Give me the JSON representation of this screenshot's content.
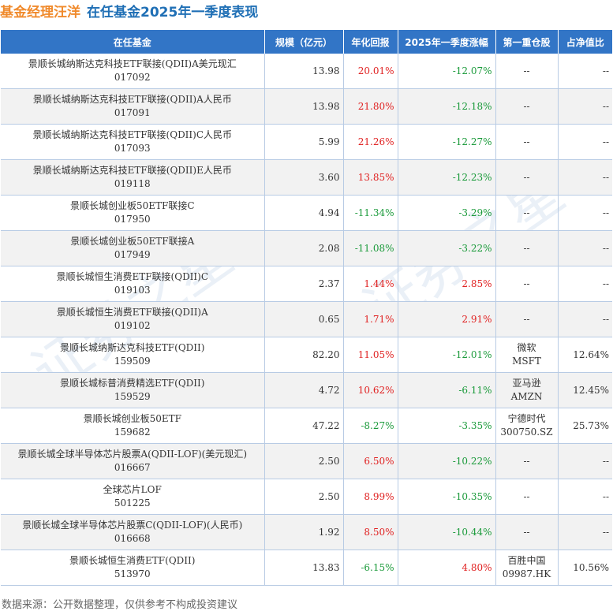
{
  "title": {
    "name": "基金经理汪洋",
    "subtitle": "在任基金2025年一季度表现"
  },
  "columns": [
    "在任基金",
    "规模（亿元）",
    "年化回报",
    "2025年一季度涨幅",
    "第一重仓股",
    "占净值比"
  ],
  "rows": [
    {
      "name": "景顺长城纳斯达克科技ETF联接(QDII)A美元现汇",
      "code": "017092",
      "size": "13.98",
      "annual": "20.01%",
      "q1": "-12.07%",
      "stock": "--",
      "stock_code": "",
      "ratio": "--"
    },
    {
      "name": "景顺长城纳斯达克科技ETF联接(QDII)A人民币",
      "code": "017091",
      "size": "13.98",
      "annual": "21.80%",
      "q1": "-12.18%",
      "stock": "--",
      "stock_code": "",
      "ratio": "--"
    },
    {
      "name": "景顺长城纳斯达克科技ETF联接(QDII)C人民币",
      "code": "017093",
      "size": "5.99",
      "annual": "21.26%",
      "q1": "-12.27%",
      "stock": "--",
      "stock_code": "",
      "ratio": "--"
    },
    {
      "name": "景顺长城纳斯达克科技ETF联接(QDII)E人民币",
      "code": "019118",
      "size": "3.60",
      "annual": "13.85%",
      "q1": "-12.23%",
      "stock": "--",
      "stock_code": "",
      "ratio": "--"
    },
    {
      "name": "景顺长城创业板50ETF联接C",
      "code": "017950",
      "size": "4.94",
      "annual": "-11.34%",
      "q1": "-3.29%",
      "stock": "--",
      "stock_code": "",
      "ratio": "--"
    },
    {
      "name": "景顺长城创业板50ETF联接A",
      "code": "017949",
      "size": "2.08",
      "annual": "-11.08%",
      "q1": "-3.22%",
      "stock": "--",
      "stock_code": "",
      "ratio": "--"
    },
    {
      "name": "景顺长城恒生消费ETF联接(QDII)C",
      "code": "019103",
      "size": "2.37",
      "annual": "1.44%",
      "q1": "2.85%",
      "stock": "--",
      "stock_code": "",
      "ratio": "--"
    },
    {
      "name": "景顺长城恒生消费ETF联接(QDII)A",
      "code": "019102",
      "size": "0.65",
      "annual": "1.71%",
      "q1": "2.91%",
      "stock": "--",
      "stock_code": "",
      "ratio": "--"
    },
    {
      "name": "景顺长城纳斯达克科技ETF(QDII)",
      "code": "159509",
      "size": "82.20",
      "annual": "11.05%",
      "q1": "-12.01%",
      "stock": "微软",
      "stock_code": "MSFT",
      "ratio": "12.64%"
    },
    {
      "name": "景顺长城标普消费精选ETF(QDII)",
      "code": "159529",
      "size": "4.72",
      "annual": "10.62%",
      "q1": "-6.11%",
      "stock": "亚马逊",
      "stock_code": "AMZN",
      "ratio": "12.45%"
    },
    {
      "name": "景顺长城创业板50ETF",
      "code": "159682",
      "size": "47.22",
      "annual": "-8.27%",
      "q1": "-3.35%",
      "stock": "宁德时代",
      "stock_code": "300750.SZ",
      "ratio": "25.73%"
    },
    {
      "name": "景顺长城全球半导体芯片股票A(QDII-LOF)(美元现汇)",
      "code": "016667",
      "size": "2.50",
      "annual": "6.50%",
      "q1": "-10.22%",
      "stock": "--",
      "stock_code": "",
      "ratio": "--"
    },
    {
      "name": "全球芯片LOF",
      "code": "501225",
      "size": "2.50",
      "annual": "8.99%",
      "q1": "-10.35%",
      "stock": "--",
      "stock_code": "",
      "ratio": "--"
    },
    {
      "name": "景顺长城全球半导体芯片股票C(QDII-LOF)(人民币)",
      "code": "016668",
      "size": "1.92",
      "annual": "8.50%",
      "q1": "-10.44%",
      "stock": "--",
      "stock_code": "",
      "ratio": "--"
    },
    {
      "name": "景顺长城恒生消费ETF(QDII)",
      "code": "513970",
      "size": "13.83",
      "annual": "-6.15%",
      "q1": "4.80%",
      "stock": "百胜中国",
      "stock_code": "09987.HK",
      "ratio": "10.56%"
    }
  ],
  "footer": "数据来源：公开数据整理，仅供参考不构成投资建议",
  "watermark": "证券之星",
  "colors": {
    "header_bg": "#3275c6",
    "positive": "#e02020",
    "negative": "#1a9a3a",
    "title_name": "#f08a2c",
    "title_sub": "#1f6fb5"
  }
}
